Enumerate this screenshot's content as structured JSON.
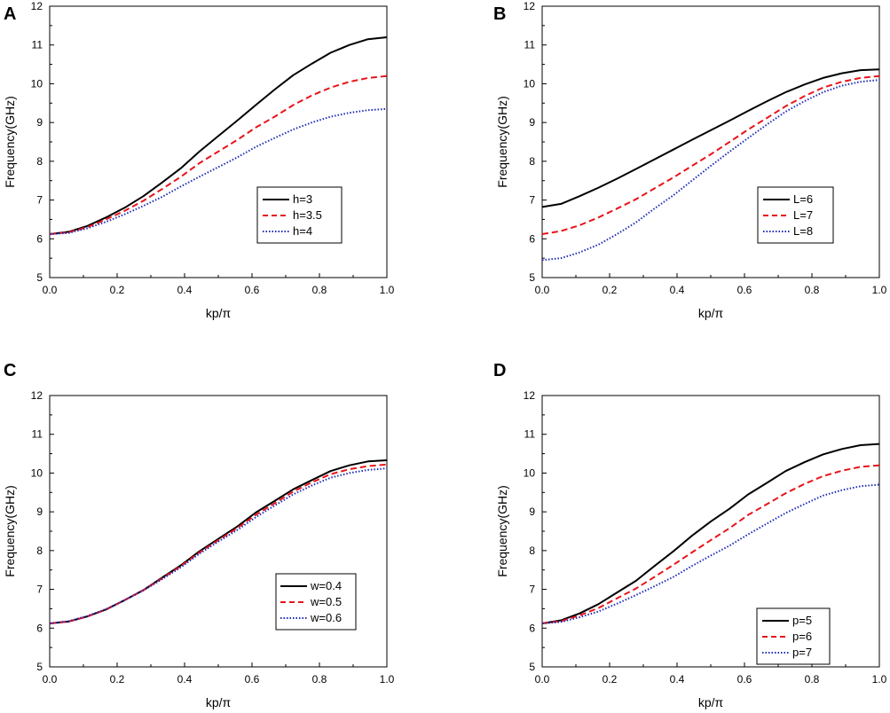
{
  "figure": {
    "panels": [
      "A",
      "B",
      "C",
      "D"
    ]
  },
  "chart_data": [
    {
      "panel": "A",
      "type": "line",
      "xlabel": "kp/π",
      "ylabel": "Frequency(GHz)",
      "xlim": [
        0,
        1.0
      ],
      "ylim": [
        5,
        12
      ],
      "xticks": [
        "0.0",
        "0.2",
        "0.4",
        "0.6",
        "0.8",
        "1.0"
      ],
      "yticks": [
        "5",
        "6",
        "7",
        "8",
        "9",
        "10",
        "11",
        "12"
      ],
      "legend_position": "lower-right",
      "x": [
        0,
        0.056,
        0.111,
        0.167,
        0.222,
        0.278,
        0.333,
        0.389,
        0.444,
        0.5,
        0.556,
        0.611,
        0.667,
        0.722,
        0.778,
        0.833,
        0.889,
        0.944,
        1.0
      ],
      "series": [
        {
          "name": "h=3",
          "color": "#000000",
          "dash": "solid",
          "values": [
            6.12,
            6.18,
            6.33,
            6.55,
            6.8,
            7.1,
            7.45,
            7.82,
            8.25,
            8.65,
            9.05,
            9.45,
            9.85,
            10.22,
            10.52,
            10.8,
            11.0,
            11.15,
            11.2
          ]
        },
        {
          "name": "h=3.5",
          "color": "#e8141a",
          "dash": "dash",
          "values": [
            6.12,
            6.17,
            6.3,
            6.5,
            6.72,
            6.98,
            7.28,
            7.6,
            7.95,
            8.25,
            8.55,
            8.87,
            9.15,
            9.45,
            9.7,
            9.9,
            10.05,
            10.15,
            10.2
          ]
        },
        {
          "name": "h=4",
          "color": "#1f2bb5",
          "dash": "dot",
          "values": [
            6.12,
            6.15,
            6.27,
            6.44,
            6.63,
            6.85,
            7.08,
            7.35,
            7.6,
            7.85,
            8.1,
            8.37,
            8.6,
            8.82,
            9.0,
            9.15,
            9.25,
            9.32,
            9.35
          ]
        }
      ]
    },
    {
      "panel": "B",
      "type": "line",
      "xlabel": "kp/π",
      "ylabel": "Frequency(GHz)",
      "xlim": [
        0,
        1.0
      ],
      "ylim": [
        5,
        12
      ],
      "xticks": [
        "0.0",
        "0.2",
        "0.4",
        "0.6",
        "0.8",
        "1.0"
      ],
      "yticks": [
        "5",
        "6",
        "7",
        "8",
        "9",
        "10",
        "11",
        "12"
      ],
      "legend_position": "lower-right",
      "x": [
        0,
        0.056,
        0.111,
        0.167,
        0.222,
        0.278,
        0.333,
        0.389,
        0.444,
        0.5,
        0.556,
        0.611,
        0.667,
        0.722,
        0.778,
        0.833,
        0.889,
        0.944,
        1.0
      ],
      "series": [
        {
          "name": "L=6",
          "color": "#000000",
          "dash": "solid",
          "values": [
            6.82,
            6.9,
            7.1,
            7.32,
            7.55,
            7.8,
            8.05,
            8.3,
            8.55,
            8.8,
            9.05,
            9.3,
            9.55,
            9.78,
            9.98,
            10.15,
            10.27,
            10.35,
            10.37
          ]
        },
        {
          "name": "L=7",
          "color": "#e8141a",
          "dash": "dash",
          "values": [
            6.12,
            6.2,
            6.35,
            6.55,
            6.78,
            7.02,
            7.3,
            7.58,
            7.88,
            8.18,
            8.5,
            8.82,
            9.12,
            9.42,
            9.68,
            9.9,
            10.05,
            10.15,
            10.2
          ]
        },
        {
          "name": "L=8",
          "color": "#1f2bb5",
          "dash": "dot",
          "values": [
            5.45,
            5.5,
            5.65,
            5.85,
            6.12,
            6.42,
            6.78,
            7.12,
            7.5,
            7.88,
            8.25,
            8.6,
            8.95,
            9.28,
            9.55,
            9.78,
            9.95,
            10.05,
            10.1
          ]
        }
      ]
    },
    {
      "panel": "C",
      "type": "line",
      "xlabel": "kp/π",
      "ylabel": "Frequency(GHz)",
      "xlim": [
        0,
        1.0
      ],
      "ylim": [
        5,
        12
      ],
      "xticks": [
        "0.0",
        "0.2",
        "0.4",
        "0.6",
        "0.8",
        "1.0"
      ],
      "yticks": [
        "5",
        "6",
        "7",
        "8",
        "9",
        "10",
        "11",
        "12"
      ],
      "legend_position": "lower-right",
      "x": [
        0,
        0.056,
        0.111,
        0.167,
        0.222,
        0.278,
        0.333,
        0.389,
        0.444,
        0.5,
        0.556,
        0.611,
        0.667,
        0.722,
        0.778,
        0.833,
        0.889,
        0.944,
        1.0
      ],
      "series": [
        {
          "name": "w=0.4",
          "color": "#000000",
          "dash": "solid",
          "values": [
            6.12,
            6.17,
            6.3,
            6.48,
            6.72,
            6.98,
            7.3,
            7.62,
            7.98,
            8.3,
            8.62,
            8.98,
            9.28,
            9.58,
            9.82,
            10.05,
            10.2,
            10.3,
            10.33
          ]
        },
        {
          "name": "w=0.5",
          "color": "#e8141a",
          "dash": "dash",
          "values": [
            6.12,
            6.17,
            6.3,
            6.48,
            6.72,
            6.98,
            7.28,
            7.6,
            7.95,
            8.27,
            8.58,
            8.92,
            9.22,
            9.52,
            9.76,
            9.97,
            10.1,
            10.18,
            10.22
          ]
        },
        {
          "name": "w=0.6",
          "color": "#1f2bb5",
          "dash": "dot",
          "values": [
            6.12,
            6.18,
            6.31,
            6.49,
            6.72,
            6.97,
            7.26,
            7.57,
            7.92,
            8.23,
            8.53,
            8.86,
            9.16,
            9.45,
            9.68,
            9.88,
            10.0,
            10.08,
            10.12
          ]
        }
      ]
    },
    {
      "panel": "D",
      "type": "line",
      "xlabel": "kp/π",
      "ylabel": "Frequency(GHz)",
      "xlim": [
        0,
        1.0
      ],
      "ylim": [
        5,
        12
      ],
      "xticks": [
        "0.0",
        "0.2",
        "0.4",
        "0.6",
        "0.8",
        "1.0"
      ],
      "yticks": [
        "5",
        "6",
        "7",
        "8",
        "9",
        "10",
        "11",
        "12"
      ],
      "legend_position": "lower-right",
      "x": [
        0,
        0.056,
        0.111,
        0.167,
        0.222,
        0.278,
        0.333,
        0.389,
        0.444,
        0.5,
        0.556,
        0.611,
        0.667,
        0.722,
        0.778,
        0.833,
        0.889,
        0.944,
        1.0
      ],
      "series": [
        {
          "name": "p=5",
          "color": "#000000",
          "dash": "solid",
          "values": [
            6.12,
            6.2,
            6.38,
            6.62,
            6.92,
            7.22,
            7.6,
            7.98,
            8.38,
            8.75,
            9.08,
            9.45,
            9.75,
            10.05,
            10.28,
            10.48,
            10.62,
            10.72,
            10.75
          ]
        },
        {
          "name": "p=6",
          "color": "#e8141a",
          "dash": "dash",
          "values": [
            6.12,
            6.18,
            6.33,
            6.52,
            6.77,
            7.02,
            7.32,
            7.63,
            7.95,
            8.27,
            8.58,
            8.92,
            9.2,
            9.48,
            9.72,
            9.92,
            10.06,
            10.16,
            10.2
          ]
        },
        {
          "name": "p=7",
          "color": "#1f2bb5",
          "dash": "dot",
          "values": [
            6.12,
            6.16,
            6.28,
            6.43,
            6.63,
            6.85,
            7.08,
            7.32,
            7.6,
            7.87,
            8.13,
            8.42,
            8.7,
            8.97,
            9.2,
            9.42,
            9.56,
            9.66,
            9.7
          ]
        }
      ]
    }
  ]
}
